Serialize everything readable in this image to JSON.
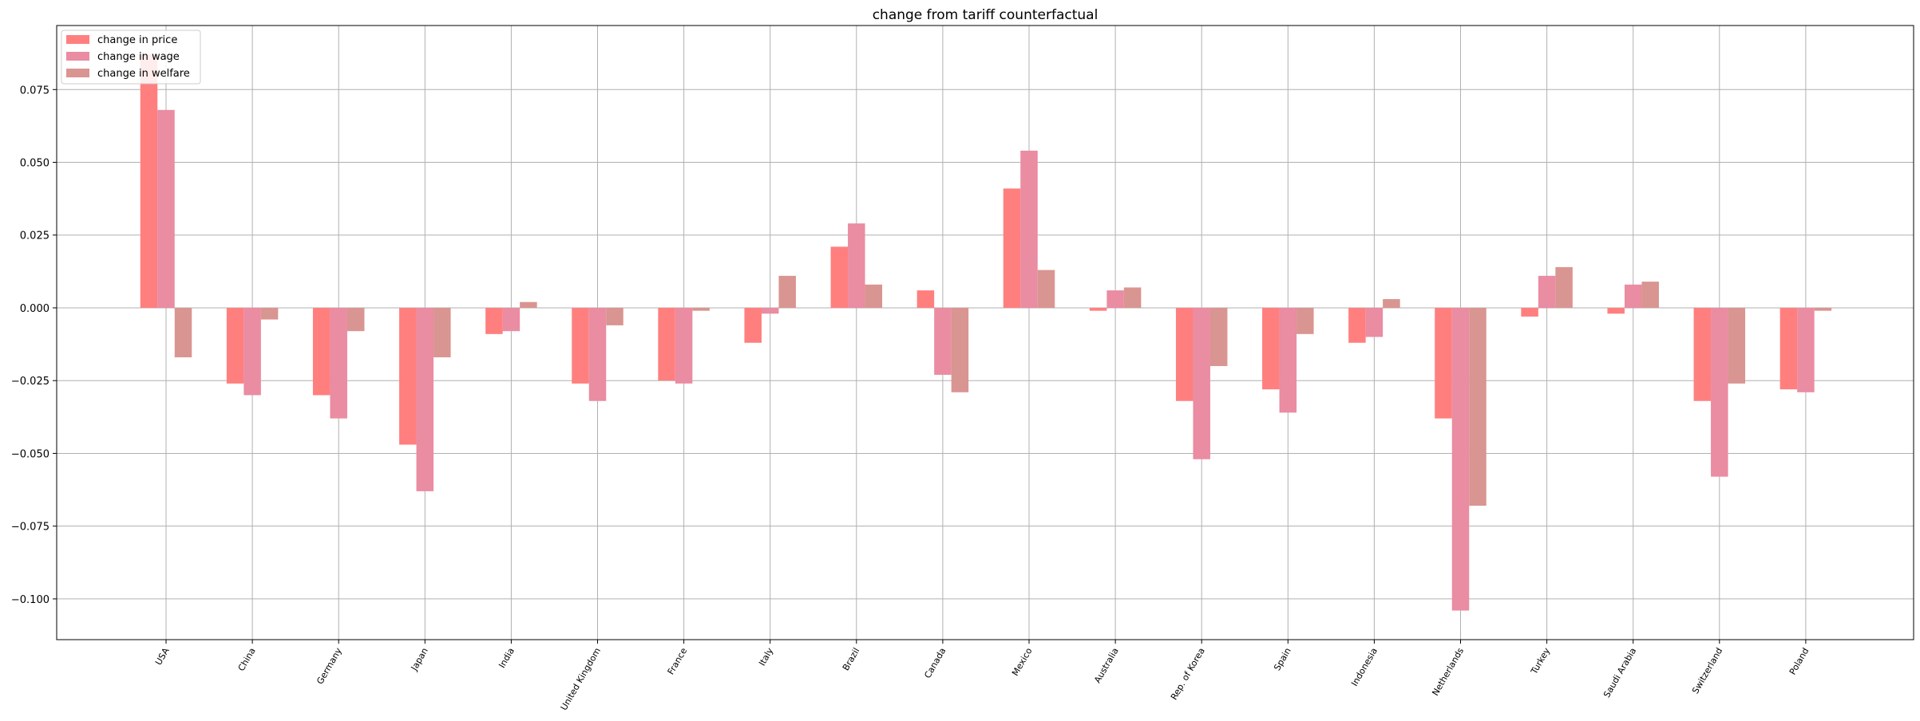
{
  "chart_data": {
    "type": "bar",
    "title": "change from tariff counterfactual",
    "xlabel": "",
    "ylabel": "",
    "ylim": [
      -0.114,
      0.097
    ],
    "yticks": [
      -0.1,
      -0.075,
      -0.05,
      -0.025,
      0.0,
      0.025,
      0.05,
      0.075
    ],
    "ytick_labels": [
      "−0.100",
      "−0.075",
      "−0.050",
      "−0.025",
      "0.000",
      "0.025",
      "0.050",
      "0.075"
    ],
    "grid": true,
    "legend_position": "top-left",
    "categories": [
      "USA",
      "China",
      "Germany",
      "Japan",
      "India",
      "United Kingdom",
      "France",
      "Italy",
      "Brazil",
      "Canada",
      "Mexico",
      "Australia",
      "Rep. of Korea",
      "Spain",
      "Indonesia",
      "Netherlands",
      "Turkey",
      "Saudi Arabia",
      "Switzerland",
      "Poland"
    ],
    "series": [
      {
        "name": "change in price",
        "color": "#ff7f7f",
        "values": [
          0.087,
          -0.026,
          -0.03,
          -0.047,
          -0.009,
          -0.026,
          -0.025,
          -0.012,
          0.021,
          0.006,
          0.041,
          -0.001,
          -0.032,
          -0.028,
          -0.012,
          -0.038,
          -0.003,
          -0.002,
          -0.032,
          -0.028
        ]
      },
      {
        "name": "change in wage",
        "color": "#ea8ca2",
        "values": [
          0.068,
          -0.03,
          -0.038,
          -0.063,
          -0.008,
          -0.032,
          -0.026,
          -0.002,
          0.029,
          -0.023,
          0.054,
          0.006,
          -0.052,
          -0.036,
          -0.01,
          -0.104,
          0.011,
          0.008,
          -0.058,
          -0.029
        ]
      },
      {
        "name": "change in welfare",
        "color": "#d99591",
        "values": [
          -0.017,
          -0.004,
          -0.008,
          -0.017,
          0.002,
          -0.006,
          -0.001,
          0.011,
          0.008,
          -0.029,
          0.013,
          0.007,
          -0.02,
          -0.009,
          0.003,
          -0.068,
          0.014,
          0.009,
          -0.026,
          -0.001
        ]
      }
    ]
  }
}
